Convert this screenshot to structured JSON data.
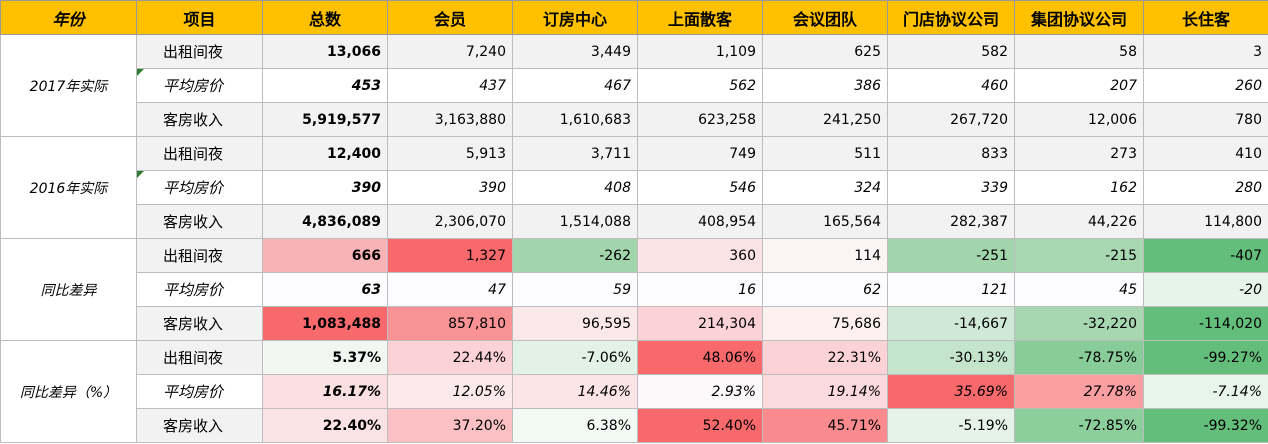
{
  "headers": [
    "年份",
    "项目",
    "总数",
    "会员",
    "订房中心",
    "上面散客",
    "会议团队",
    "门店协议公司",
    "集团协议公司",
    "长住客"
  ],
  "groups": [
    {
      "label": "2017年实际",
      "rows": [
        {
          "item": "出租间夜",
          "italic": false,
          "values": [
            "13,066",
            "7,240",
            "3,449",
            "1,109",
            "625",
            "582",
            "58",
            "3"
          ],
          "colors": [
            null,
            null,
            null,
            null,
            null,
            null,
            null,
            null
          ]
        },
        {
          "item": "平均房价",
          "italic": true,
          "marker": true,
          "values": [
            "453",
            "437",
            "467",
            "562",
            "386",
            "460",
            "207",
            "260"
          ],
          "colors": [
            null,
            null,
            null,
            null,
            null,
            null,
            null,
            null
          ]
        },
        {
          "item": "客房收入",
          "italic": false,
          "values": [
            "5,919,577",
            "3,163,880",
            "1,610,683",
            "623,258",
            "241,250",
            "267,720",
            "12,006",
            "780"
          ],
          "colors": [
            null,
            null,
            null,
            null,
            null,
            null,
            null,
            null
          ]
        }
      ]
    },
    {
      "label": "2016年实际",
      "rows": [
        {
          "item": "出租间夜",
          "italic": false,
          "values": [
            "12,400",
            "5,913",
            "3,711",
            "749",
            "511",
            "833",
            "273",
            "410"
          ],
          "colors": [
            null,
            null,
            null,
            null,
            null,
            null,
            null,
            null
          ]
        },
        {
          "item": "平均房价",
          "italic": true,
          "marker": true,
          "values": [
            "390",
            "390",
            "408",
            "546",
            "324",
            "339",
            "162",
            "280"
          ],
          "colors": [
            null,
            null,
            null,
            null,
            null,
            null,
            null,
            null
          ]
        },
        {
          "item": "客房收入",
          "italic": false,
          "values": [
            "4,836,089",
            "2,306,070",
            "1,514,088",
            "408,954",
            "165,564",
            "282,387",
            "44,226",
            "114,800"
          ],
          "colors": [
            null,
            null,
            null,
            null,
            null,
            null,
            null,
            null
          ]
        }
      ]
    },
    {
      "label": "同比差异",
      "rows": [
        {
          "item": "出租间夜",
          "italic": false,
          "values": [
            "666",
            "1,327",
            "-262",
            "360",
            "114",
            "-251",
            "-215",
            "-407"
          ],
          "colors": [
            "#f8b3b7",
            "#f8696b",
            "#a3d5ad",
            "#fbe3e5",
            "#fcf3f4",
            "#a3d5ad",
            "#a8d8b2",
            "#63be7b"
          ]
        },
        {
          "item": "平均房价",
          "italic": true,
          "values": [
            "63",
            "47",
            "59",
            "16",
            "62",
            "121",
            "45",
            "-20"
          ],
          "colors": [
            "#fcfcff",
            "#fcfcff",
            "#fcfcff",
            "#fcfcff",
            "#fcfcff",
            "#fcfcff",
            "#fcfcff",
            "#e6f4ea"
          ]
        },
        {
          "item": "客房收入",
          "italic": false,
          "values": [
            "1,083,488",
            "857,810",
            "96,595",
            "214,304",
            "75,686",
            "-14,667",
            "-32,220",
            "-114,020"
          ],
          "colors": [
            "#f8696b",
            "#f99295",
            "#fbe8ea",
            "#fbd3d6",
            "#fcf0f1",
            "#cfe9d6",
            "#a6d7b0",
            "#63be7b"
          ]
        }
      ]
    },
    {
      "label": "同比差异（%）",
      "rows": [
        {
          "item": "出租间夜",
          "italic": false,
          "values": [
            "5.37%",
            "22.44%",
            "-7.06%",
            "48.06%",
            "22.31%",
            "-30.13%",
            "-78.75%",
            "-99.27%"
          ],
          "colors": [
            "#f2f7f3",
            "#fbd2d5",
            "#e2f2e6",
            "#f8696b",
            "#fbd3d6",
            "#c4e4cc",
            "#88cc99",
            "#63be7b"
          ]
        },
        {
          "item": "平均房价",
          "italic": true,
          "values": [
            "16.17%",
            "12.05%",
            "14.46%",
            "2.93%",
            "19.14%",
            "35.69%",
            "27.78%",
            "-7.14%"
          ],
          "colors": [
            "#fbe0e2",
            "#fbe9eb",
            "#fbe5e7",
            "#fcf8f9",
            "#fbd9dc",
            "#f8696b",
            "#f99ea1",
            "#e8f5eb"
          ]
        },
        {
          "item": "客房收入",
          "italic": false,
          "values": [
            "22.40%",
            "37.20%",
            "6.38%",
            "52.40%",
            "45.71%",
            "-5.19%",
            "-72.85%",
            "-99.32%"
          ],
          "colors": [
            "#fbe3e5",
            "#fac0c3",
            "#f3f9f5",
            "#f8696b",
            "#f98a8d",
            "#e5f3e8",
            "#8ccf9d",
            "#63be7b"
          ]
        }
      ]
    }
  ]
}
